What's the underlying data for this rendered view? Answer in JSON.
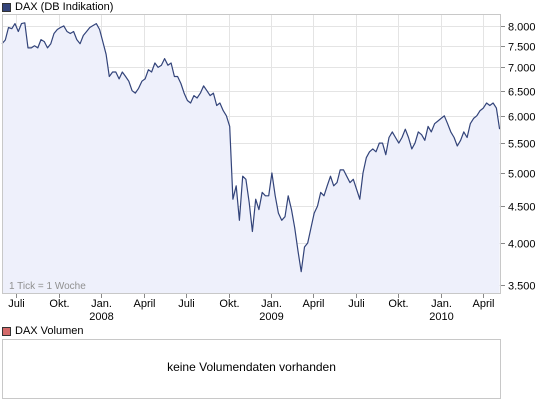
{
  "chart_data": {
    "type": "area",
    "series": [
      {
        "name": "DAX (DB Indikation)",
        "color": "#33447a",
        "fill": "#eef0fb",
        "points": [
          [
            "2007-06-01",
            7550
          ],
          [
            "2007-06-08",
            7640
          ],
          [
            "2007-06-15",
            7950
          ],
          [
            "2007-06-22",
            7920
          ],
          [
            "2007-06-29",
            8050
          ],
          [
            "2007-07-06",
            7850
          ],
          [
            "2007-07-13",
            8050
          ],
          [
            "2007-07-20",
            8070
          ],
          [
            "2007-07-27",
            7450
          ],
          [
            "2007-08-03",
            7450
          ],
          [
            "2007-08-10",
            7500
          ],
          [
            "2007-08-17",
            7450
          ],
          [
            "2007-08-24",
            7650
          ],
          [
            "2007-08-31",
            7600
          ],
          [
            "2007-09-07",
            7450
          ],
          [
            "2007-09-14",
            7550
          ],
          [
            "2007-09-21",
            7800
          ],
          [
            "2007-09-28",
            7900
          ],
          [
            "2007-10-05",
            7950
          ],
          [
            "2007-10-12",
            7990
          ],
          [
            "2007-10-19",
            7850
          ],
          [
            "2007-10-26",
            7800
          ],
          [
            "2007-11-02",
            7850
          ],
          [
            "2007-11-09",
            7650
          ],
          [
            "2007-11-16",
            7550
          ],
          [
            "2007-11-23",
            7750
          ],
          [
            "2007-11-30",
            7850
          ],
          [
            "2007-12-07",
            7950
          ],
          [
            "2007-12-14",
            8000
          ],
          [
            "2007-12-21",
            8050
          ],
          [
            "2007-12-28",
            7900
          ],
          [
            "2008-01-04",
            7600
          ],
          [
            "2008-01-11",
            7300
          ],
          [
            "2008-01-18",
            6800
          ],
          [
            "2008-01-25",
            6900
          ],
          [
            "2008-02-01",
            6900
          ],
          [
            "2008-02-08",
            6750
          ],
          [
            "2008-02-15",
            6900
          ],
          [
            "2008-02-22",
            6800
          ],
          [
            "2008-02-29",
            6700
          ],
          [
            "2008-03-07",
            6500
          ],
          [
            "2008-03-14",
            6450
          ],
          [
            "2008-03-21",
            6550
          ],
          [
            "2008-03-28",
            6700
          ],
          [
            "2008-04-04",
            6750
          ],
          [
            "2008-04-11",
            6950
          ],
          [
            "2008-04-18",
            6900
          ],
          [
            "2008-04-25",
            7100
          ],
          [
            "2008-05-02",
            7000
          ],
          [
            "2008-05-09",
            7050
          ],
          [
            "2008-05-16",
            7200
          ],
          [
            "2008-05-23",
            7050
          ],
          [
            "2008-05-30",
            7100
          ],
          [
            "2008-06-06",
            6800
          ],
          [
            "2008-06-13",
            6800
          ],
          [
            "2008-06-20",
            6650
          ],
          [
            "2008-06-27",
            6450
          ],
          [
            "2008-07-04",
            6300
          ],
          [
            "2008-07-11",
            6250
          ],
          [
            "2008-07-18",
            6400
          ],
          [
            "2008-07-25",
            6350
          ],
          [
            "2008-08-01",
            6450
          ],
          [
            "2008-08-08",
            6600
          ],
          [
            "2008-08-15",
            6500
          ],
          [
            "2008-08-22",
            6400
          ],
          [
            "2008-08-29",
            6450
          ],
          [
            "2008-09-05",
            6200
          ],
          [
            "2008-09-12",
            6250
          ],
          [
            "2008-09-19",
            6100
          ],
          [
            "2008-09-26",
            6000
          ],
          [
            "2008-10-03",
            5800
          ],
          [
            "2008-10-10",
            4600
          ],
          [
            "2008-10-17",
            4800
          ],
          [
            "2008-10-24",
            4300
          ],
          [
            "2008-10-31",
            4950
          ],
          [
            "2008-11-07",
            4900
          ],
          [
            "2008-11-14",
            4550
          ],
          [
            "2008-11-21",
            4150
          ],
          [
            "2008-11-28",
            4600
          ],
          [
            "2008-12-05",
            4450
          ],
          [
            "2008-12-12",
            4700
          ],
          [
            "2008-12-19",
            4650
          ],
          [
            "2008-12-26",
            4650
          ],
          [
            "2009-01-02",
            5000
          ],
          [
            "2009-01-09",
            4650
          ],
          [
            "2009-01-16",
            4400
          ],
          [
            "2009-01-23",
            4300
          ],
          [
            "2009-01-30",
            4350
          ],
          [
            "2009-02-06",
            4650
          ],
          [
            "2009-02-13",
            4450
          ],
          [
            "2009-02-20",
            4200
          ],
          [
            "2009-02-27",
            3900
          ],
          [
            "2009-03-06",
            3650
          ],
          [
            "2009-03-13",
            3950
          ],
          [
            "2009-03-20",
            4000
          ],
          [
            "2009-03-27",
            4200
          ],
          [
            "2009-04-03",
            4400
          ],
          [
            "2009-04-10",
            4500
          ],
          [
            "2009-04-17",
            4700
          ],
          [
            "2009-04-24",
            4650
          ],
          [
            "2009-05-01",
            4800
          ],
          [
            "2009-05-08",
            4950
          ],
          [
            "2009-05-15",
            4800
          ],
          [
            "2009-05-22",
            4850
          ],
          [
            "2009-05-29",
            5050
          ],
          [
            "2009-06-05",
            5050
          ],
          [
            "2009-06-12",
            4950
          ],
          [
            "2009-06-19",
            4850
          ],
          [
            "2009-06-26",
            4900
          ],
          [
            "2009-07-03",
            4750
          ],
          [
            "2009-07-10",
            4600
          ],
          [
            "2009-07-17",
            5000
          ],
          [
            "2009-07-24",
            5250
          ],
          [
            "2009-07-31",
            5350
          ],
          [
            "2009-08-07",
            5400
          ],
          [
            "2009-08-14",
            5350
          ],
          [
            "2009-08-21",
            5500
          ],
          [
            "2009-08-28",
            5500
          ],
          [
            "2009-09-04",
            5300
          ],
          [
            "2009-09-11",
            5600
          ],
          [
            "2009-09-18",
            5700
          ],
          [
            "2009-09-25",
            5600
          ],
          [
            "2009-10-02",
            5500
          ],
          [
            "2009-10-09",
            5600
          ],
          [
            "2009-10-16",
            5750
          ],
          [
            "2009-10-23",
            5600
          ],
          [
            "2009-10-30",
            5400
          ],
          [
            "2009-11-06",
            5500
          ],
          [
            "2009-11-13",
            5700
          ],
          [
            "2009-11-20",
            5650
          ],
          [
            "2009-11-27",
            5550
          ],
          [
            "2009-12-04",
            5800
          ],
          [
            "2009-12-11",
            5700
          ],
          [
            "2009-12-18",
            5850
          ],
          [
            "2009-12-25",
            5900
          ],
          [
            "2010-01-01",
            5950
          ],
          [
            "2010-01-08",
            6000
          ],
          [
            "2010-01-15",
            5850
          ],
          [
            "2010-01-22",
            5700
          ],
          [
            "2010-01-29",
            5600
          ],
          [
            "2010-02-05",
            5450
          ],
          [
            "2010-02-12",
            5550
          ],
          [
            "2010-02-19",
            5700
          ],
          [
            "2010-02-26",
            5600
          ],
          [
            "2010-03-05",
            5850
          ],
          [
            "2010-03-12",
            5950
          ],
          [
            "2010-03-19",
            6000
          ],
          [
            "2010-03-26",
            6100
          ],
          [
            "2010-04-02",
            6150
          ],
          [
            "2010-04-09",
            6250
          ],
          [
            "2010-04-16",
            6200
          ],
          [
            "2010-04-23",
            6250
          ],
          [
            "2010-04-30",
            6150
          ],
          [
            "2010-05-07",
            5750
          ]
        ]
      }
    ],
    "y_scale": "log",
    "ylim": [
      3400,
      8300
    ],
    "yticks": [
      3500,
      4000,
      4500,
      5000,
      5500,
      6000,
      6500,
      7000,
      7500,
      8000
    ],
    "ytick_labels": [
      "3.500",
      "4.000",
      "4.500",
      "5.000",
      "5.500",
      "6.000",
      "6.500",
      "7.000",
      "7.500",
      "8.000"
    ],
    "xlim": [
      "2007-06-01",
      "2010-05-10"
    ],
    "xticks": [
      {
        "date": "2007-07-01",
        "label": "Juli",
        "year": ""
      },
      {
        "date": "2007-10-01",
        "label": "Okt.",
        "year": ""
      },
      {
        "date": "2008-01-01",
        "label": "Jan.",
        "year": "2008"
      },
      {
        "date": "2008-04-01",
        "label": "April",
        "year": ""
      },
      {
        "date": "2008-07-01",
        "label": "Juli",
        "year": ""
      },
      {
        "date": "2008-10-01",
        "label": "Okt.",
        "year": ""
      },
      {
        "date": "2009-01-01",
        "label": "Jan.",
        "year": "2009"
      },
      {
        "date": "2009-04-01",
        "label": "April",
        "year": ""
      },
      {
        "date": "2009-07-01",
        "label": "Juli",
        "year": ""
      },
      {
        "date": "2009-10-01",
        "label": "Okt.",
        "year": ""
      },
      {
        "date": "2010-01-01",
        "label": "Jan.",
        "year": "2010"
      },
      {
        "date": "2010-04-01",
        "label": "April",
        "year": ""
      }
    ],
    "grid": true,
    "annotation": "1 Tick = 1 Woche",
    "legend_position": "top-left"
  },
  "legend": {
    "price_label": "DAX (DB Indikation)",
    "price_color": "#33447a",
    "volume_label": "DAX Volumen",
    "volume_color": "#d46a6a"
  },
  "volume_panel": {
    "message": "keine Volumendaten vorhanden"
  }
}
